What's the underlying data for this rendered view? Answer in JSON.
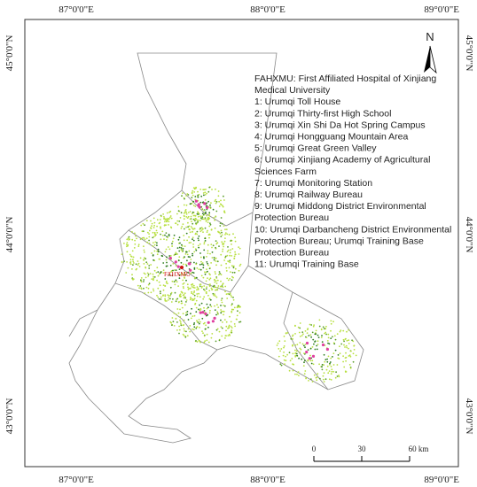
{
  "longitude_labels": [
    "87°0'0\"E",
    "88°0'0\"E",
    "89°0'0\"E"
  ],
  "latitude_labels": [
    "45°0'0\"N",
    "44°0'0\"N",
    "43°0'0\"N"
  ],
  "north_label": "N",
  "hospital_label": "FAHXMU",
  "legend": {
    "lines": [
      "FAHXMU: First Affiliated Hospital of Xinjiang",
      "Medical University",
      "1: Urumqi Toll House",
      "2: Urumqi Thirty-first High School",
      "3: Urumqi Xin Shi Da Hot Spring Campus",
      "4: Urumqi Hongguang Mountain Area",
      "5: Urumqi Great Green Valley",
      "6: Urumqi Xinjiang Academy of Agricultural",
      "Sciences Farm",
      "7: Urumqi Monitoring Station",
      "8: Urumqi Railway Bureau",
      "9: Urumqi Middong District Environmental",
      "Protection Bureau",
      "10: Urumqi Darbancheng District Environmental",
      "Protection Bureau; Urumqi Training Base",
      "Protection Bureau",
      "11: Urumqi Training Base"
    ]
  },
  "scale_bar": {
    "labels": [
      "0",
      "30",
      "60 km"
    ]
  }
}
